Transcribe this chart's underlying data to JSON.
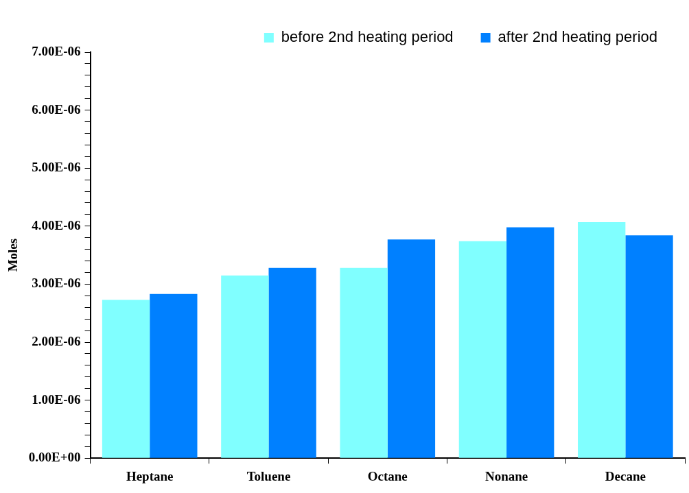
{
  "chart_data": {
    "type": "bar",
    "ylabel": "Moles",
    "categories": [
      "Heptane",
      "Toluene",
      "Octane",
      "Nonane",
      "Decane"
    ],
    "series": [
      {
        "name": "before 2nd heating period",
        "color": "#80ffff",
        "values": [
          2.73e-06,
          3.15e-06,
          3.28e-06,
          3.74e-06,
          4.07e-06
        ]
      },
      {
        "name": "after 2nd heating period",
        "color": "#0080ff",
        "values": [
          2.83e-06,
          3.28e-06,
          3.77e-06,
          3.98e-06,
          3.84e-06
        ]
      }
    ],
    "ylim": [
      0,
      7e-06
    ],
    "yticks": [
      {
        "value": 0,
        "label": "0.00E+00"
      },
      {
        "value": 2e-07,
        "label": null
      },
      {
        "value": 4e-07,
        "label": null
      },
      {
        "value": 6e-07,
        "label": null
      },
      {
        "value": 8e-07,
        "label": null
      },
      {
        "value": 1e-06,
        "label": "1.00E-06"
      },
      {
        "value": 1.2e-06,
        "label": null
      },
      {
        "value": 1.4e-06,
        "label": null
      },
      {
        "value": 1.6e-06,
        "label": null
      },
      {
        "value": 1.8e-06,
        "label": null
      },
      {
        "value": 2e-06,
        "label": "2.00E-06"
      },
      {
        "value": 2.2e-06,
        "label": null
      },
      {
        "value": 2.4e-06,
        "label": null
      },
      {
        "value": 2.6e-06,
        "label": null
      },
      {
        "value": 2.8e-06,
        "label": null
      },
      {
        "value": 3e-06,
        "label": "3.00E-06"
      },
      {
        "value": 3.2e-06,
        "label": null
      },
      {
        "value": 3.4e-06,
        "label": null
      },
      {
        "value": 3.6e-06,
        "label": null
      },
      {
        "value": 3.8e-06,
        "label": null
      },
      {
        "value": 4e-06,
        "label": "4.00E-06"
      },
      {
        "value": 4.2e-06,
        "label": null
      },
      {
        "value": 4.4e-06,
        "label": null
      },
      {
        "value": 4.6e-06,
        "label": null
      },
      {
        "value": 4.8e-06,
        "label": null
      },
      {
        "value": 5e-06,
        "label": "5.00E-06"
      },
      {
        "value": 5.2e-06,
        "label": null
      },
      {
        "value": 5.4e-06,
        "label": null
      },
      {
        "value": 5.6e-06,
        "label": null
      },
      {
        "value": 5.8e-06,
        "label": null
      },
      {
        "value": 6e-06,
        "label": "6.00E-06"
      },
      {
        "value": 6.2e-06,
        "label": null
      },
      {
        "value": 6.4e-06,
        "label": null
      },
      {
        "value": 6.6e-06,
        "label": null
      },
      {
        "value": 6.8e-06,
        "label": null
      },
      {
        "value": 7e-06,
        "label": "7.00E-06"
      }
    ],
    "grid": false,
    "legend": "top"
  }
}
